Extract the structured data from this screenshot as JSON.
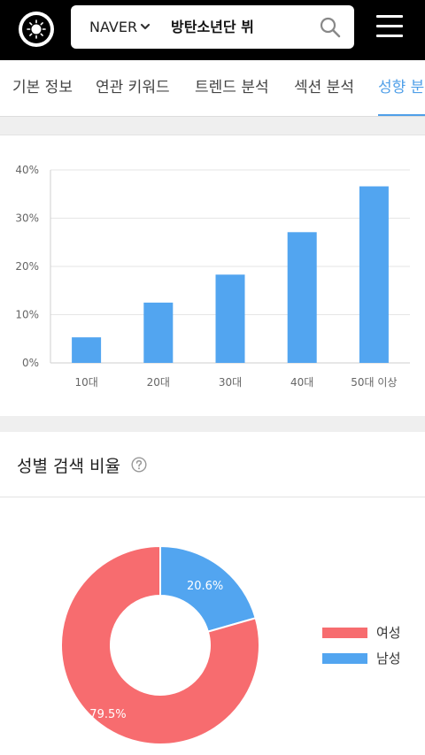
{
  "header": {
    "engine": "NAVER",
    "query": "방탄소년단 뷔",
    "logo_icon": "sun-icon",
    "search_icon": "search-icon",
    "menu_icon": "hamburger-menu-icon"
  },
  "tabs": [
    {
      "label": "기본 정보",
      "active": false
    },
    {
      "label": "연관 키워드",
      "active": false
    },
    {
      "label": "트렌드 분석",
      "active": false
    },
    {
      "label": "섹션 분석",
      "active": false
    },
    {
      "label": "성향 분석",
      "active": true
    }
  ],
  "colors": {
    "accent": "#4f9fe8",
    "bar": "#52a5f0",
    "female": "#f76c6f",
    "male": "#52a5f0"
  },
  "chart_data": [
    {
      "type": "bar",
      "categories": [
        "10대",
        "20대",
        "30대",
        "40대",
        "50대 이상"
      ],
      "values": [
        5.3,
        12.5,
        18.3,
        27.1,
        36.6
      ],
      "ylim": [
        0,
        40
      ],
      "yticks": [
        "0%",
        "10%",
        "20%",
        "30%",
        "40%"
      ],
      "grid": true
    },
    {
      "type": "pie",
      "title": "성별 검색 비율",
      "labels": [
        "남성",
        "여성"
      ],
      "values": [
        20.6,
        79.5
      ],
      "value_labels": [
        "20.6%",
        "79.5%"
      ],
      "legend": [
        "여성",
        "남성"
      ],
      "legend_position": "right"
    }
  ]
}
